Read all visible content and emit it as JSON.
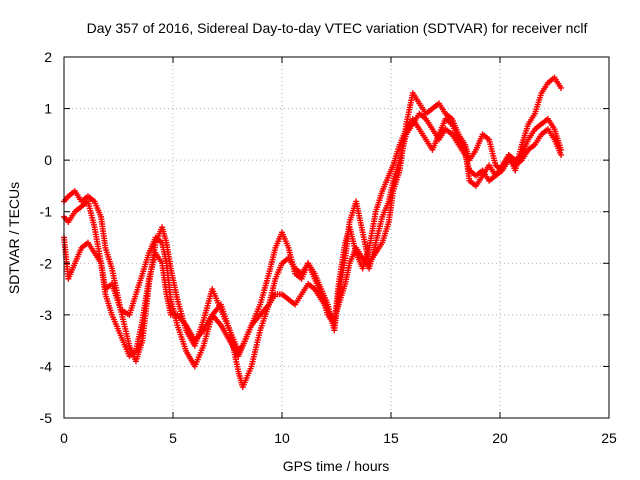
{
  "chart_data": {
    "type": "scatter",
    "title": "Day 357 of 2016, Sidereal Day-to-day VTEC variation (SDTVAR) for receiver nclf",
    "xlabel": "GPS time / hours",
    "ylabel": "SDTVAR / TECUs",
    "xlim": [
      0,
      25
    ],
    "ylim": [
      -5,
      2
    ],
    "xticks": [
      "0",
      "5",
      "10",
      "15",
      "20",
      "25"
    ],
    "yticks": [
      "2",
      "1",
      "0",
      "-1",
      "-2",
      "-3",
      "-4",
      "-5"
    ],
    "grid": true,
    "marker": "+",
    "color": "#ff0000",
    "series": [
      {
        "x": [
          0,
          0.2,
          0.5,
          0.8,
          1.1,
          1.4,
          1.7,
          1.9,
          2.2,
          2.6,
          3.0,
          3.3,
          3.6,
          3.9,
          4.2,
          4.5,
          4.7,
          4.9,
          5.2,
          5.6,
          6.0,
          6.4,
          6.8,
          7.2,
          7.6,
          8.0,
          8.2,
          8.6,
          9.0,
          9.4,
          9.7,
          10.0,
          10.3,
          10.6,
          10.9,
          11.2,
          11.5,
          11.8,
          12.1,
          12.4,
          12.6,
          12.9,
          13.1,
          13.4,
          13.7,
          14.0,
          14.3,
          14.6,
          14.9,
          15.1,
          15.4,
          15.7,
          16.0,
          16.3,
          16.6,
          16.9,
          17.2,
          17.5,
          17.8,
          18.1,
          18.4,
          18.6,
          18.9,
          19.2,
          19.5,
          19.8,
          20.1,
          20.4,
          20.7,
          21.0,
          21.3,
          21.6,
          21.9,
          22.2,
          22.5,
          22.8
        ],
        "y": [
          -0.8,
          -0.7,
          -0.6,
          -0.8,
          -0.7,
          -0.8,
          -1.1,
          -1.7,
          -2.1,
          -2.9,
          -3.6,
          -3.9,
          -3.5,
          -2.4,
          -1.6,
          -1.3,
          -1.6,
          -2.1,
          -2.7,
          -3.3,
          -3.6,
          -3.1,
          -2.5,
          -2.9,
          -3.3,
          -3.7,
          -3.6,
          -3.2,
          -2.8,
          -2.2,
          -1.7,
          -1.4,
          -1.7,
          -2.2,
          -2.3,
          -2.0,
          -2.2,
          -2.5,
          -2.8,
          -3.3,
          -2.6,
          -1.9,
          -1.2,
          -0.8,
          -1.4,
          -2.0,
          -1.8,
          -1.6,
          -1.2,
          -0.6,
          -0.2,
          0.7,
          1.3,
          1.1,
          0.9,
          1.0,
          1.1,
          0.9,
          0.8,
          0.5,
          0.3,
          0.0,
          0.2,
          0.5,
          0.4,
          -0.1,
          -0.2,
          0.1,
          -0.2,
          0.3,
          0.7,
          0.9,
          1.3,
          1.5,
          1.6,
          1.4
        ]
      },
      {
        "x": [
          0,
          0.2,
          0.5,
          0.8,
          1.1,
          1.4,
          1.7,
          1.9,
          2.2,
          2.6,
          3.0,
          3.3,
          3.6,
          3.9,
          4.2,
          4.5,
          4.7,
          4.9,
          5.2,
          5.6,
          6.0,
          6.4,
          6.8,
          7.2,
          7.6,
          8.0,
          8.2,
          8.6,
          9.0,
          9.4,
          9.7,
          10.0,
          10.3,
          10.6,
          10.9,
          11.2,
          11.5,
          11.8,
          12.1,
          12.4,
          12.6,
          12.9,
          13.1,
          13.4,
          13.7,
          14.0,
          14.3,
          14.6,
          14.9,
          15.1,
          15.4,
          15.7,
          16.0,
          16.3,
          16.6,
          16.9,
          17.2,
          17.5,
          17.8,
          18.1,
          18.4,
          18.6,
          18.9,
          19.2,
          19.5,
          19.8,
          20.1,
          20.4,
          20.7,
          21.0,
          21.3,
          21.6,
          21.9,
          22.2,
          22.5,
          22.8
        ],
        "y": [
          -1.1,
          -1.2,
          -1.0,
          -0.9,
          -0.8,
          -1.3,
          -2.0,
          -2.5,
          -2.4,
          -2.9,
          -3.0,
          -2.6,
          -2.2,
          -1.8,
          -1.5,
          -1.6,
          -2.0,
          -2.7,
          -3.2,
          -3.7,
          -4.0,
          -3.6,
          -3.0,
          -2.8,
          -3.3,
          -4.1,
          -4.4,
          -4.0,
          -3.3,
          -2.8,
          -2.3,
          -2.0,
          -1.9,
          -2.1,
          -2.2,
          -2.0,
          -2.3,
          -2.6,
          -3.0,
          -3.2,
          -2.4,
          -1.6,
          -1.3,
          -1.8,
          -2.1,
          -1.7,
          -1.0,
          -0.6,
          -0.3,
          -0.1,
          0.3,
          0.6,
          0.8,
          0.6,
          0.4,
          0.2,
          0.5,
          0.8,
          0.7,
          0.4,
          0.2,
          -0.4,
          -0.5,
          -0.3,
          -0.1,
          -0.3,
          -0.2,
          0.0,
          -0.1,
          0.0,
          0.2,
          0.3,
          0.5,
          0.6,
          0.4,
          0.1
        ]
      },
      {
        "x": [
          0,
          0.2,
          0.5,
          0.8,
          1.1,
          1.4,
          1.7,
          1.9,
          2.2,
          2.6,
          3.0,
          3.3,
          3.6,
          3.9,
          4.2,
          4.5,
          4.7,
          4.9,
          5.2,
          5.6,
          6.0,
          6.4,
          6.8,
          7.2,
          7.6,
          8.0,
          8.2,
          8.6,
          9.0,
          9.4,
          9.7,
          10.0,
          10.3,
          10.6,
          10.9,
          11.2,
          11.5,
          11.8,
          12.1,
          12.4,
          12.6,
          12.9,
          13.1,
          13.4,
          13.7,
          14.0,
          14.3,
          14.6,
          14.9,
          15.1,
          15.4,
          15.7,
          16.0,
          16.3,
          16.6,
          16.9,
          17.2,
          17.5,
          17.8,
          18.1,
          18.4,
          18.6,
          18.9,
          19.2,
          19.5,
          19.8,
          20.1,
          20.4,
          20.7,
          21.0,
          21.3,
          21.6,
          21.9,
          22.2,
          22.5,
          22.8
        ],
        "y": [
          -1.5,
          -2.3,
          -2.0,
          -1.7,
          -1.6,
          -1.8,
          -2.0,
          -2.6,
          -3.0,
          -3.4,
          -3.8,
          -3.7,
          -3.1,
          -2.3,
          -1.8,
          -2.0,
          -2.6,
          -3.0,
          -3.0,
          -3.2,
          -3.5,
          -3.3,
          -3.0,
          -3.2,
          -3.5,
          -3.8,
          -3.6,
          -3.2,
          -3.0,
          -2.8,
          -2.6,
          -2.6,
          -2.7,
          -2.8,
          -2.6,
          -2.4,
          -2.5,
          -2.7,
          -2.9,
          -3.1,
          -2.8,
          -2.4,
          -2.0,
          -1.7,
          -1.9,
          -2.1,
          -1.6,
          -1.1,
          -0.8,
          -0.4,
          0.0,
          0.5,
          0.7,
          0.9,
          0.8,
          0.6,
          0.4,
          0.6,
          0.5,
          0.3,
          0.1,
          -0.2,
          -0.3,
          -0.2,
          -0.4,
          -0.3,
          -0.1,
          0.1,
          0.0,
          0.1,
          0.4,
          0.6,
          0.7,
          0.8,
          0.6,
          0.2
        ]
      }
    ]
  }
}
